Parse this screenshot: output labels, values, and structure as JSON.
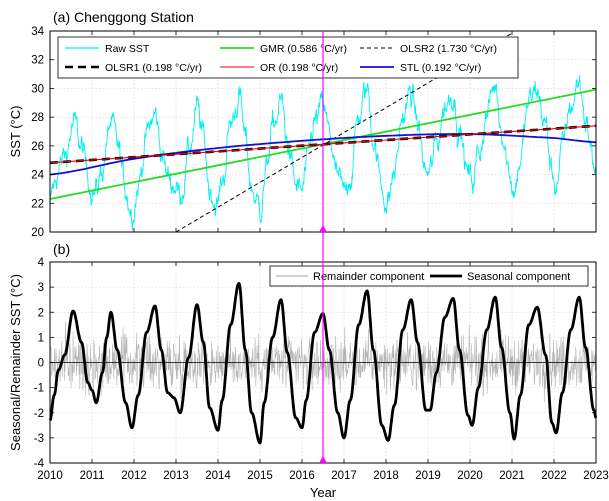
{
  "chart_data": [
    {
      "type": "line",
      "title": "(a) Chenggong Station",
      "ylabel": "SST (°C)",
      "xlim": [
        2010,
        2023
      ],
      "ylim": [
        20,
        34
      ],
      "yticks": [
        20,
        22,
        24,
        26,
        28,
        30,
        32,
        34
      ],
      "grid": true,
      "legend_position": "top",
      "seasonal_mean": 26.0,
      "raw_amplitude": 3.3,
      "series": [
        {
          "name": "Raw SST",
          "color": "#00f0f0",
          "style": "noisy-seasonal"
        },
        {
          "name": "OLSR1 (0.198 °C/yr)",
          "color": "#000000",
          "style": "thick-dash",
          "x": [
            2010,
            2023
          ],
          "y": [
            24.82,
            27.4
          ]
        },
        {
          "name": "GMR (0.586 °C/yr)",
          "color": "#22dd22",
          "style": "solid",
          "x": [
            2010,
            2023
          ],
          "y": [
            22.3,
            29.92
          ]
        },
        {
          "name": "OR (0.198 °C/yr)",
          "color": "#e8000b",
          "style": "thin-solid",
          "x": [
            2010,
            2023
          ],
          "y": [
            24.82,
            27.4
          ]
        },
        {
          "name": "OLSR2 (1.730 °C/yr)",
          "color": "#000000",
          "style": "thin-dash",
          "x": [
            2013.0,
            2021.0
          ],
          "y": [
            20.0,
            33.85
          ]
        },
        {
          "name": "STL (0.192 °C/yr)",
          "color": "#1010d8",
          "style": "solid",
          "x": [
            2010,
            2012,
            2014,
            2016,
            2018,
            2020,
            2022,
            2023
          ],
          "y": [
            24.0,
            25.1,
            25.85,
            26.35,
            26.7,
            26.82,
            26.55,
            26.25
          ]
        }
      ]
    },
    {
      "type": "line",
      "title": "(b)",
      "xlabel": "Year",
      "ylabel": "Seasonal/Remainder SST (°C)",
      "xlim": [
        2010,
        2023
      ],
      "ylim": [
        -4,
        4
      ],
      "xticks": [
        2010,
        2011,
        2012,
        2013,
        2014,
        2015,
        2016,
        2017,
        2018,
        2019,
        2020,
        2021,
        2022,
        2023
      ],
      "yticks": [
        -4,
        -3,
        -2,
        -1,
        0,
        1,
        2,
        3,
        4
      ],
      "grid": true,
      "legend_position": "top-right",
      "series": [
        {
          "name": "Remainder component",
          "color": "#b4b4b4",
          "style": "noisy"
        },
        {
          "name": "Seasonal component",
          "color": "#000000",
          "style": "thick",
          "x": [
            2010.0,
            2010.1,
            2010.2,
            2010.35,
            2010.55,
            2010.75,
            2010.9,
            2011.0,
            2011.1,
            2011.25,
            2011.35,
            2011.45,
            2011.6,
            2011.8,
            2011.95,
            2012.1,
            2012.3,
            2012.5,
            2012.65,
            2012.8,
            2012.95,
            2013.1,
            2013.3,
            2013.5,
            2013.65,
            2013.8,
            2014.0,
            2014.1,
            2014.3,
            2014.5,
            2014.65,
            2014.8,
            2015.0,
            2015.1,
            2015.3,
            2015.5,
            2015.65,
            2015.85,
            2016.0,
            2016.1,
            2016.3,
            2016.5,
            2016.65,
            2016.85,
            2017.0,
            2017.15,
            2017.35,
            2017.55,
            2017.7,
            2017.9,
            2018.05,
            2018.2,
            2018.4,
            2018.6,
            2018.75,
            2018.95,
            2019.05,
            2019.2,
            2019.4,
            2019.6,
            2019.75,
            2019.95,
            2020.05,
            2020.2,
            2020.4,
            2020.6,
            2020.75,
            2020.95,
            2021.05,
            2021.2,
            2021.4,
            2021.6,
            2021.8,
            2021.95,
            2022.05,
            2022.2,
            2022.4,
            2022.6,
            2022.75,
            2022.95,
            2023.0
          ],
          "y": [
            -2.3,
            -1.3,
            -0.3,
            0.3,
            2.05,
            0.8,
            -0.8,
            -1.1,
            -1.6,
            -0.4,
            1.0,
            2.0,
            0.5,
            -1.6,
            -2.6,
            -1.3,
            1.2,
            2.25,
            0.5,
            -1.2,
            -1.4,
            -2.0,
            0.2,
            2.3,
            0.8,
            -1.8,
            -2.7,
            -1.5,
            1.5,
            3.15,
            0.5,
            -2.0,
            -3.2,
            -1.6,
            1.0,
            2.5,
            0.4,
            -2.2,
            -2.6,
            -1.5,
            1.2,
            1.95,
            0.5,
            -2.0,
            -3.0,
            -1.5,
            1.5,
            2.85,
            0.5,
            -2.5,
            -3.1,
            -1.7,
            1.3,
            2.5,
            0.8,
            -1.9,
            -1.9,
            -0.4,
            1.8,
            2.55,
            0.5,
            -2.1,
            -2.5,
            -1.0,
            1.3,
            2.6,
            0.6,
            -2.0,
            -3.05,
            -1.3,
            1.5,
            2.2,
            0.3,
            -2.4,
            -2.8,
            -1.2,
            1.3,
            2.6,
            0.6,
            -1.9,
            -2.2
          ]
        }
      ]
    }
  ],
  "marker": {
    "x": 2016.5,
    "color": "#ff00ff"
  }
}
